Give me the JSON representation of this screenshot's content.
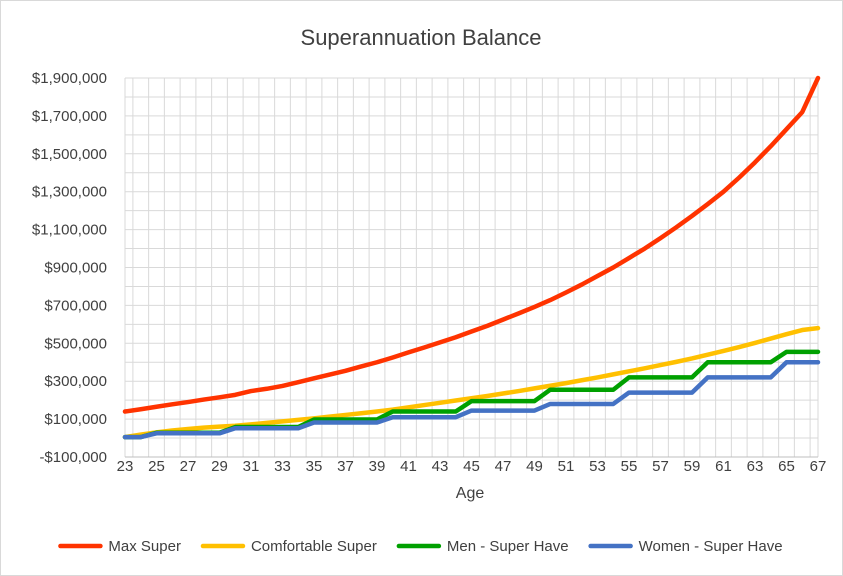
{
  "chart_data": {
    "type": "line",
    "title": "Superannuation Balance",
    "xlabel": "Age",
    "ylabel": "",
    "x": [
      23,
      24,
      25,
      26,
      27,
      28,
      29,
      30,
      31,
      32,
      33,
      34,
      35,
      36,
      37,
      38,
      39,
      40,
      41,
      42,
      43,
      44,
      45,
      46,
      47,
      48,
      49,
      50,
      51,
      52,
      53,
      54,
      55,
      56,
      57,
      58,
      59,
      60,
      61,
      62,
      63,
      64,
      65,
      66,
      67
    ],
    "x_tick_labels": [
      "23",
      "25",
      "27",
      "29",
      "31",
      "33",
      "35",
      "37",
      "39",
      "41",
      "43",
      "45",
      "47",
      "49",
      "51",
      "53",
      "55",
      "57",
      "59",
      "61",
      "63",
      "65",
      "67"
    ],
    "ylim": [
      -100000,
      1900000
    ],
    "y_tick_labels": [
      "-$100,000",
      "$100,000",
      "$300,000",
      "$500,000",
      "$700,000",
      "$900,000",
      "$1,100,000",
      "$1,300,000",
      "$1,500,000",
      "$1,700,000",
      "$1,900,000"
    ],
    "grid": true,
    "legend_position": "bottom",
    "series": [
      {
        "name": "Max Super",
        "color": "#ff3300",
        "values": [
          140000,
          152000,
          165000,
          178000,
          190000,
          203000,
          215000,
          228000,
          248000,
          260000,
          275000,
          295000,
          315000,
          335000,
          355000,
          378000,
          400000,
          425000,
          452000,
          478000,
          505000,
          532000,
          562000,
          592000,
          625000,
          658000,
          692000,
          728000,
          768000,
          810000,
          855000,
          900000,
          950000,
          1000000,
          1055000,
          1112000,
          1172000,
          1235000,
          1300000,
          1375000,
          1455000,
          1540000,
          1630000,
          1720000,
          1900000
        ]
      },
      {
        "name": "Comfortable Super",
        "color": "#ffc000",
        "values": [
          5000,
          18000,
          30000,
          40000,
          48000,
          55000,
          60000,
          65000,
          72000,
          80000,
          88000,
          96000,
          104000,
          113000,
          122000,
          131000,
          140000,
          150000,
          162000,
          174000,
          186000,
          198000,
          210000,
          222000,
          235000,
          248000,
          262000,
          276000,
          290000,
          305000,
          320000,
          336000,
          352000,
          368000,
          385000,
          402000,
          420000,
          440000,
          460000,
          480000,
          502000,
          525000,
          548000,
          570000,
          580000
        ]
      },
      {
        "name": "Men - Super Have",
        "color": "#00a000",
        "values": [
          5000,
          5000,
          28000,
          28000,
          28000,
          28000,
          28000,
          58000,
          58000,
          58000,
          58000,
          58000,
          98000,
          98000,
          98000,
          98000,
          98000,
          140000,
          140000,
          140000,
          140000,
          140000,
          195000,
          195000,
          195000,
          195000,
          195000,
          255000,
          255000,
          255000,
          255000,
          255000,
          320000,
          320000,
          320000,
          320000,
          320000,
          400000,
          400000,
          400000,
          400000,
          400000,
          455000,
          455000,
          455000
        ]
      },
      {
        "name": "Women - Super Have",
        "color": "#4472c4",
        "values": [
          5000,
          5000,
          25000,
          25000,
          25000,
          25000,
          25000,
          52000,
          52000,
          52000,
          52000,
          52000,
          82000,
          82000,
          82000,
          82000,
          82000,
          110000,
          110000,
          110000,
          110000,
          110000,
          145000,
          145000,
          145000,
          145000,
          145000,
          180000,
          180000,
          180000,
          180000,
          180000,
          240000,
          240000,
          240000,
          240000,
          240000,
          320000,
          320000,
          320000,
          320000,
          320000,
          400000,
          400000,
          400000
        ]
      }
    ]
  }
}
